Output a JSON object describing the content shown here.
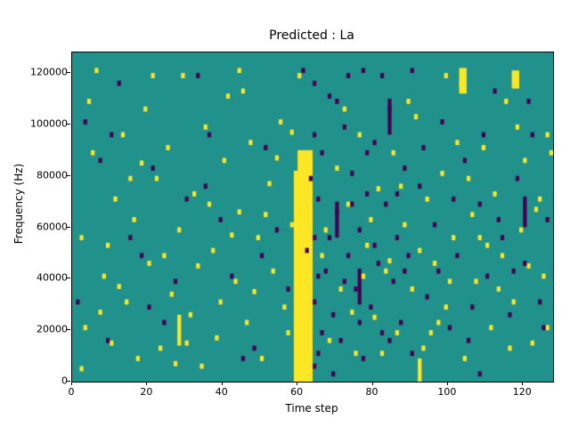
{
  "title": "Predicted : La",
  "chart_data": {
    "type": "heatmap",
    "title": "Predicted : La",
    "xlabel": "Time step",
    "ylabel": "Frequency (Hz)",
    "xlim": [
      0,
      128
    ],
    "ylim": [
      0,
      128000
    ],
    "xticks": [
      0,
      20,
      40,
      60,
      80,
      100,
      120
    ],
    "yticks": [
      0,
      20000,
      40000,
      60000,
      80000,
      100000,
      120000
    ],
    "freq_bin_hz": 1000,
    "cell_note": "cells are [time_step, freq_bin]; freq in Hz = bin * 1000",
    "colors": {
      "background": "#21918c",
      "yellow": "#fde725",
      "purple": "#440154"
    },
    "bands": [
      {
        "x0": 59,
        "x1": 64,
        "y0": 0,
        "y1": 82,
        "color": "yellow"
      },
      {
        "x0": 60,
        "x1": 64,
        "y0": 82,
        "y1": 90,
        "color": "yellow"
      },
      {
        "x0": 28,
        "x1": 29,
        "y0": 14,
        "y1": 26,
        "color": "yellow"
      },
      {
        "x0": 103,
        "x1": 105,
        "y0": 112,
        "y1": 122,
        "color": "yellow"
      },
      {
        "x0": 117,
        "x1": 119,
        "y0": 114,
        "y1": 121,
        "color": "yellow"
      },
      {
        "x0": 92,
        "x1": 93,
        "y0": 0,
        "y1": 9,
        "color": "yellow"
      },
      {
        "x0": 70,
        "x1": 71,
        "y0": 56,
        "y1": 70,
        "color": "purple"
      },
      {
        "x0": 76,
        "x1": 77,
        "y0": 30,
        "y1": 44,
        "color": "purple"
      },
      {
        "x0": 84,
        "x1": 85,
        "y0": 96,
        "y1": 110,
        "color": "purple"
      },
      {
        "x0": 120,
        "x1": 121,
        "y0": 60,
        "y1": 72,
        "color": "purple"
      }
    ],
    "yellow_cells": [
      [
        2,
        55
      ],
      [
        3,
        20
      ],
      [
        5,
        88
      ],
      [
        6,
        120
      ],
      [
        8,
        40
      ],
      [
        10,
        14
      ],
      [
        11,
        70
      ],
      [
        13,
        95
      ],
      [
        14,
        30
      ],
      [
        16,
        62
      ],
      [
        17,
        8
      ],
      [
        19,
        105
      ],
      [
        20,
        45
      ],
      [
        22,
        78
      ],
      [
        23,
        12
      ],
      [
        25,
        90
      ],
      [
        26,
        33
      ],
      [
        28,
        58
      ],
      [
        29,
        118
      ],
      [
        31,
        25
      ],
      [
        32,
        72
      ],
      [
        34,
        5
      ],
      [
        35,
        98
      ],
      [
        37,
        50
      ],
      [
        38,
        16
      ],
      [
        40,
        85
      ],
      [
        41,
        110
      ],
      [
        43,
        38
      ],
      [
        44,
        65
      ],
      [
        46,
        22
      ],
      [
        47,
        92
      ],
      [
        49,
        55
      ],
      [
        50,
        8
      ],
      [
        52,
        76
      ],
      [
        53,
        42
      ],
      [
        55,
        100
      ],
      [
        56,
        28
      ],
      [
        58,
        60
      ],
      [
        66,
        48
      ],
      [
        68,
        15
      ],
      [
        70,
        82
      ],
      [
        71,
        35
      ],
      [
        73,
        68
      ],
      [
        75,
        10
      ],
      [
        76,
        95
      ],
      [
        78,
        52
      ],
      [
        80,
        24
      ],
      [
        81,
        74
      ],
      [
        83,
        42
      ],
      [
        85,
        88
      ],
      [
        86,
        18
      ],
      [
        88,
        60
      ],
      [
        90,
        35
      ],
      [
        91,
        102
      ],
      [
        93,
        12
      ],
      [
        94,
        70
      ],
      [
        96,
        45
      ],
      [
        98,
        80
      ],
      [
        99,
        28
      ],
      [
        101,
        55
      ],
      [
        103,
        115
      ],
      [
        104,
        8
      ],
      [
        106,
        64
      ],
      [
        107,
        38
      ],
      [
        109,
        90
      ],
      [
        111,
        20
      ],
      [
        112,
        72
      ],
      [
        114,
        48
      ],
      [
        115,
        108
      ],
      [
        117,
        30
      ],
      [
        119,
        58
      ],
      [
        120,
        85
      ],
      [
        122,
        14
      ],
      [
        123,
        66
      ],
      [
        125,
        40
      ],
      [
        126,
        95
      ],
      [
        4,
        108
      ],
      [
        9,
        52
      ],
      [
        15,
        78
      ],
      [
        21,
        118
      ],
      [
        27,
        6
      ],
      [
        33,
        44
      ],
      [
        39,
        30
      ],
      [
        45,
        112
      ],
      [
        51,
        64
      ],
      [
        57,
        18
      ],
      [
        67,
        58
      ],
      [
        72,
        105
      ],
      [
        77,
        40
      ],
      [
        82,
        10
      ],
      [
        87,
        75
      ],
      [
        92,
        50
      ],
      [
        97,
        22
      ],
      [
        102,
        92
      ],
      [
        108,
        55
      ],
      [
        113,
        35
      ],
      [
        118,
        98
      ],
      [
        124,
        70
      ],
      [
        12,
        36
      ],
      [
        18,
        84
      ],
      [
        24,
        48
      ],
      [
        30,
        14
      ],
      [
        36,
        68
      ],
      [
        42,
        56
      ],
      [
        48,
        34
      ],
      [
        54,
        86
      ],
      [
        60,
        118
      ],
      [
        74,
        26
      ],
      [
        79,
        62
      ],
      [
        84,
        46
      ],
      [
        89,
        108
      ],
      [
        95,
        18
      ],
      [
        100,
        38
      ],
      [
        105,
        78
      ],
      [
        110,
        52
      ],
      [
        116,
        12
      ],
      [
        121,
        44
      ],
      [
        127,
        88
      ],
      [
        7,
        26
      ],
      [
        44,
        120
      ],
      [
        58,
        96
      ],
      [
        99,
        118
      ],
      [
        126,
        20
      ],
      [
        2,
        4
      ]
    ],
    "purple_cells": [
      [
        1,
        30
      ],
      [
        7,
        85
      ],
      [
        12,
        115
      ],
      [
        18,
        48
      ],
      [
        24,
        22
      ],
      [
        30,
        70
      ],
      [
        36,
        95
      ],
      [
        42,
        40
      ],
      [
        48,
        12
      ],
      [
        54,
        58
      ],
      [
        63,
        78
      ],
      [
        64,
        30
      ],
      [
        64,
        5
      ],
      [
        66,
        88
      ],
      [
        67,
        42
      ],
      [
        68,
        110
      ],
      [
        69,
        25
      ],
      [
        70,
        65
      ],
      [
        71,
        15
      ],
      [
        72,
        98
      ],
      [
        73,
        48
      ],
      [
        74,
        80
      ],
      [
        75,
        35
      ],
      [
        76,
        58
      ],
      [
        77,
        8
      ],
      [
        78,
        72
      ],
      [
        79,
        28
      ],
      [
        80,
        92
      ],
      [
        81,
        45
      ],
      [
        82,
        18
      ],
      [
        83,
        68
      ],
      [
        84,
        105
      ],
      [
        85,
        38
      ],
      [
        86,
        55
      ],
      [
        87,
        22
      ],
      [
        88,
        82
      ],
      [
        89,
        48
      ],
      [
        90,
        10
      ],
      [
        92,
        75
      ],
      [
        94,
        32
      ],
      [
        96,
        60
      ],
      [
        98,
        100
      ],
      [
        100,
        20
      ],
      [
        102,
        48
      ],
      [
        104,
        85
      ],
      [
        106,
        28
      ],
      [
        108,
        68
      ],
      [
        110,
        40
      ],
      [
        112,
        112
      ],
      [
        114,
        55
      ],
      [
        116,
        25
      ],
      [
        118,
        78
      ],
      [
        120,
        45
      ],
      [
        122,
        95
      ],
      [
        124,
        30
      ],
      [
        126,
        62
      ],
      [
        3,
        100
      ],
      [
        9,
        15
      ],
      [
        15,
        55
      ],
      [
        21,
        82
      ],
      [
        27,
        38
      ],
      [
        33,
        118
      ],
      [
        39,
        62
      ],
      [
        45,
        8
      ],
      [
        51,
        90
      ],
      [
        57,
        35
      ],
      [
        61,
        120
      ],
      [
        62,
        50
      ],
      [
        64,
        95
      ],
      [
        66,
        18
      ],
      [
        68,
        55
      ],
      [
        70,
        108
      ],
      [
        72,
        38
      ],
      [
        74,
        68
      ],
      [
        76,
        22
      ],
      [
        78,
        88
      ],
      [
        80,
        52
      ],
      [
        82,
        118
      ],
      [
        84,
        15
      ],
      [
        86,
        72
      ],
      [
        88,
        42
      ],
      [
        10,
        95
      ],
      [
        20,
        28
      ],
      [
        35,
        75
      ],
      [
        50,
        48
      ],
      [
        93,
        90
      ],
      [
        97,
        42
      ],
      [
        101,
        70
      ],
      [
        105,
        15
      ],
      [
        109,
        95
      ],
      [
        113,
        62
      ],
      [
        117,
        42
      ],
      [
        121,
        108
      ],
      [
        125,
        20
      ],
      [
        64,
        55
      ],
      [
        65,
        10
      ],
      [
        65,
        40
      ],
      [
        65,
        70
      ],
      [
        64,
        115
      ],
      [
        73,
        118
      ],
      [
        69,
        2
      ],
      [
        77,
        120
      ],
      [
        90,
        120
      ],
      [
        108,
        2
      ]
    ]
  }
}
